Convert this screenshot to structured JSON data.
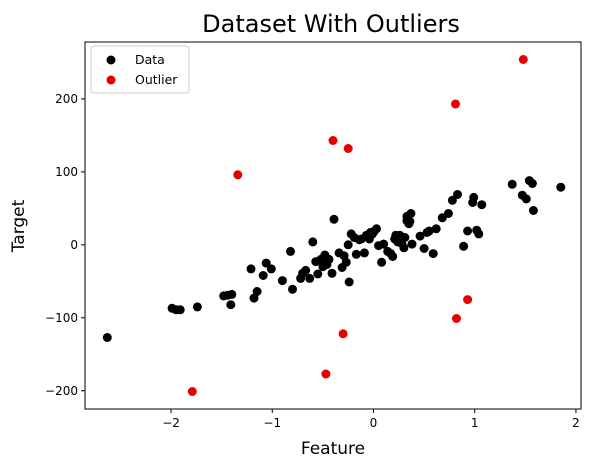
{
  "chart_data": {
    "type": "scatter",
    "title": "Dataset With Outliers",
    "xlabel": "Feature",
    "ylabel": "Target",
    "xlim": [
      -2.85,
      2.05
    ],
    "ylim": [
      -225,
      278
    ],
    "xticks": [
      -2,
      -1,
      0,
      1,
      2
    ],
    "xtick_labels": [
      "−2",
      "−1",
      "0",
      "1",
      "2"
    ],
    "yticks": [
      -200,
      -100,
      0,
      100,
      200
    ],
    "ytick_labels": [
      "−200",
      "−100",
      "0",
      "100",
      "200"
    ],
    "grid": false,
    "legend_position": "top-left",
    "series": [
      {
        "name": "Data",
        "color": "#000000",
        "points": [
          [
            -2.63,
            -127
          ],
          [
            -1.99,
            -87
          ],
          [
            -1.95,
            -89
          ],
          [
            -1.91,
            -89
          ],
          [
            -1.74,
            -85
          ],
          [
            -1.48,
            -70
          ],
          [
            -1.44,
            -69
          ],
          [
            -1.41,
            -82
          ],
          [
            -1.4,
            -68
          ],
          [
            -1.21,
            -33
          ],
          [
            -1.18,
            -73
          ],
          [
            -1.15,
            -64
          ],
          [
            -1.09,
            -42
          ],
          [
            -1.06,
            -25
          ],
          [
            -1.01,
            -33
          ],
          [
            -0.9,
            -49
          ],
          [
            -0.82,
            -9
          ],
          [
            -0.8,
            -61
          ],
          [
            -0.72,
            -46
          ],
          [
            -0.7,
            -39
          ],
          [
            -0.67,
            -35
          ],
          [
            -0.63,
            -46
          ],
          [
            -0.6,
            4
          ],
          [
            -0.57,
            -23
          ],
          [
            -0.55,
            -40
          ],
          [
            -0.52,
            -20
          ],
          [
            -0.5,
            -30
          ],
          [
            -0.48,
            -14
          ],
          [
            -0.46,
            -27
          ],
          [
            -0.44,
            -20
          ],
          [
            -0.41,
            -39
          ],
          [
            -0.39,
            35
          ],
          [
            -0.34,
            -11
          ],
          [
            -0.31,
            -31
          ],
          [
            -0.29,
            -15
          ],
          [
            -0.27,
            -24
          ],
          [
            -0.25,
            0
          ],
          [
            -0.24,
            -51
          ],
          [
            -0.22,
            15
          ],
          [
            -0.19,
            10
          ],
          [
            -0.17,
            -13
          ],
          [
            -0.14,
            7
          ],
          [
            -0.12,
            8
          ],
          [
            -0.09,
            -11
          ],
          [
            -0.07,
            13
          ],
          [
            -0.04,
            8
          ],
          [
            -0.03,
            17
          ],
          [
            -0.01,
            15
          ],
          [
            0.01,
            19
          ],
          [
            0.03,
            22
          ],
          [
            0.05,
            -1
          ],
          [
            0.08,
            -24
          ],
          [
            0.1,
            1
          ],
          [
            0.14,
            -9
          ],
          [
            0.17,
            -12
          ],
          [
            0.19,
            -16
          ],
          [
            0.21,
            8
          ],
          [
            0.22,
            13
          ],
          [
            0.24,
            4
          ],
          [
            0.26,
            13
          ],
          [
            0.28,
            2
          ],
          [
            0.3,
            -4
          ],
          [
            0.31,
            10
          ],
          [
            0.33,
            33
          ],
          [
            0.33,
            39
          ],
          [
            0.35,
            29
          ],
          [
            0.36,
            32
          ],
          [
            0.37,
            43
          ],
          [
            0.38,
            1
          ],
          [
            0.46,
            12
          ],
          [
            0.5,
            -5
          ],
          [
            0.53,
            17
          ],
          [
            0.55,
            19
          ],
          [
            0.59,
            -12
          ],
          [
            0.62,
            22
          ],
          [
            0.68,
            37
          ],
          [
            0.74,
            43
          ],
          [
            0.78,
            61
          ],
          [
            0.83,
            69
          ],
          [
            0.89,
            -2
          ],
          [
            0.93,
            19
          ],
          [
            0.98,
            58
          ],
          [
            0.99,
            65
          ],
          [
            1.02,
            20
          ],
          [
            1.04,
            15
          ],
          [
            1.07,
            55
          ],
          [
            1.37,
            83
          ],
          [
            1.47,
            68
          ],
          [
            1.51,
            63
          ],
          [
            1.54,
            88
          ],
          [
            1.57,
            84
          ],
          [
            1.58,
            47
          ],
          [
            1.85,
            79
          ]
        ]
      },
      {
        "name": "Outlier",
        "color": "#e60000",
        "points": [
          [
            -1.79,
            -201
          ],
          [
            -1.34,
            96
          ],
          [
            -0.47,
            -177
          ],
          [
            -0.4,
            143
          ],
          [
            -0.3,
            -122
          ],
          [
            -0.25,
            132
          ],
          [
            0.81,
            193
          ],
          [
            0.82,
            -101
          ],
          [
            0.93,
            -75
          ],
          [
            1.48,
            254
          ]
        ]
      }
    ]
  }
}
